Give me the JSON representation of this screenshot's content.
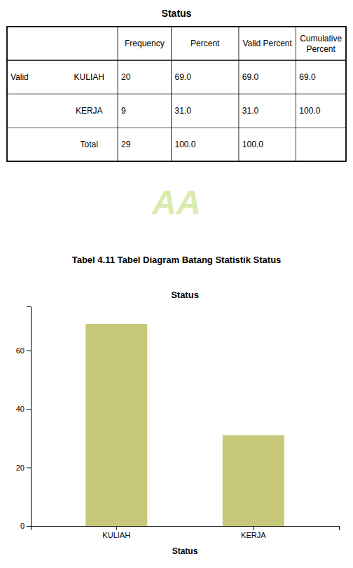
{
  "title": "Status",
  "table": {
    "columns": [
      null,
      null,
      "Frequency",
      "Percent",
      "Valid Percent",
      "Cumulative\nPercent"
    ],
    "rows": [
      [
        "Valid",
        "KULIAH",
        "20",
        "69.0",
        "69.0",
        "69.0"
      ],
      [
        null,
        "KERJA",
        "9",
        "31.0",
        "31.0",
        "100.0"
      ],
      [
        null,
        "Total",
        "29",
        "100.0",
        "100.0",
        null
      ]
    ]
  },
  "annotations": [
    "AA"
  ],
  "caption": "Tabel 4.11 Tabel Diagram Batang Statistik Status",
  "chart_data": {
    "type": "bar",
    "title": "Status",
    "x_label": "Status",
    "categories": [
      "KULIAH",
      "KERJA"
    ],
    "values": [
      69,
      31
    ],
    "color": "#c8c87a",
    "ylim": [
      0,
      75
    ],
    "yticks": [
      0,
      20,
      40,
      60
    ],
    "grid": false
  }
}
